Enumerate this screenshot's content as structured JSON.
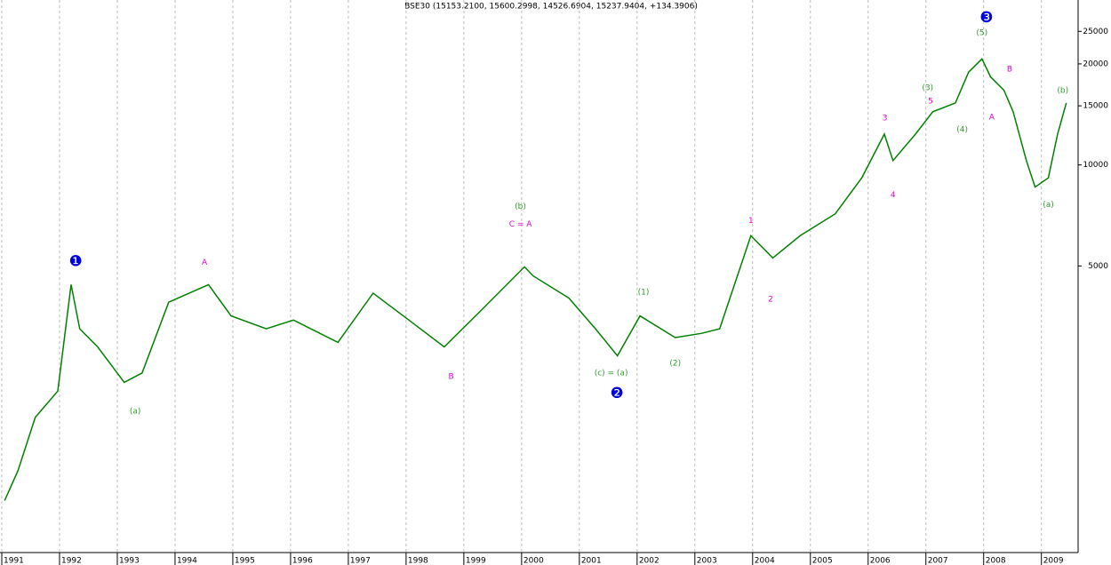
{
  "chart_data": {
    "type": "line",
    "title": "BSE30 (15153.2100, 15600.2998, 14526.6904, 15237.9404, +134.3906)",
    "log": true,
    "xgrid": true,
    "color": "#008000",
    "x": [
      1991.05,
      1991.28,
      1991.58,
      1991.97,
      1992.2,
      1992.35,
      1992.66,
      1993.12,
      1993.43,
      1993.89,
      1994.58,
      1994.97,
      1995.58,
      1996.05,
      1996.82,
      1997.43,
      1998.05,
      1998.66,
      1999.28,
      2000.05,
      2000.2,
      2000.82,
      2001.28,
      2001.66,
      2002.05,
      2002.66,
      2003.12,
      2003.43,
      2003.97,
      2004.35,
      2004.82,
      2005.43,
      2005.89,
      2006.28,
      2006.43,
      2006.82,
      2007.12,
      2007.51,
      2007.74,
      2007.97,
      2008.12,
      2008.35,
      2008.51,
      2008.74,
      2008.89,
      2009.12,
      2009.28,
      2009.43
    ],
    "values": [
      1000,
      1228,
      1770,
      2120,
      4400,
      3250,
      2870,
      2250,
      2400,
      3900,
      4400,
      3550,
      3250,
      3450,
      2960,
      4150,
      3450,
      2870,
      3660,
      4970,
      4670,
      4010,
      3250,
      2700,
      3550,
      3060,
      3150,
      3250,
      6150,
      5280,
      6150,
      7150,
      9150,
      12350,
      10300,
      12350,
      14400,
      15300,
      18900,
      20700,
      18300,
      16700,
      14400,
      10300,
      8590,
      9150,
      12350,
      15300
    ],
    "xlim": [
      1991,
      2009.62
    ],
    "xticks": [
      1991,
      1992,
      1993,
      1994,
      1995,
      1996,
      1997,
      1998,
      1999,
      2000,
      2001,
      2002,
      2003,
      2004,
      2005,
      2006,
      2007,
      2008,
      2009
    ],
    "ylim": [
      700,
      31000
    ],
    "yticks": [
      5000,
      10000,
      15000,
      20000,
      25000
    ],
    "annotations": [
      {
        "text": "❶",
        "x": 1992.28,
        "y": 5150,
        "color": "#0000dd"
      },
      {
        "text": "A",
        "x": 1994.51,
        "y": 5120,
        "color": "#dd00dd"
      },
      {
        "text": "(a)",
        "x": 1993.31,
        "y": 1845,
        "color": "#339933"
      },
      {
        "text": "B",
        "x": 1998.78,
        "y": 2340,
        "color": "#dd00dd"
      },
      {
        "text": "(b)",
        "x": 1999.98,
        "y": 7510,
        "color": "#339933"
      },
      {
        "text": "C = A",
        "x": 1999.98,
        "y": 6650,
        "color": "#dd00dd"
      },
      {
        "text": "(c) = (a)",
        "x": 2001.55,
        "y": 2395,
        "color": "#339933"
      },
      {
        "text": "❷",
        "x": 2001.65,
        "y": 2085,
        "color": "#0000dd"
      },
      {
        "text": "(1)",
        "x": 2002.11,
        "y": 4170,
        "color": "#339933"
      },
      {
        "text": "(2)",
        "x": 2002.66,
        "y": 2560,
        "color": "#339933"
      },
      {
        "text": "1",
        "x": 2003.97,
        "y": 6820,
        "color": "#dd00dd"
      },
      {
        "text": "2",
        "x": 2004.31,
        "y": 3970,
        "color": "#dd00dd"
      },
      {
        "text": "3",
        "x": 2006.29,
        "y": 13800,
        "color": "#dd00dd"
      },
      {
        "text": "4",
        "x": 2006.43,
        "y": 8130,
        "color": "#dd00dd"
      },
      {
        "text": "(3)",
        "x": 2007.03,
        "y": 16970,
        "color": "#339933"
      },
      {
        "text": "5",
        "x": 2007.08,
        "y": 15490,
        "color": "#dd00dd"
      },
      {
        "text": "(4)",
        "x": 2007.63,
        "y": 12750,
        "color": "#339933"
      },
      {
        "text": "❸",
        "x": 2008.05,
        "y": 27430,
        "color": "#0000dd"
      },
      {
        "text": "(5)",
        "x": 2007.97,
        "y": 24740,
        "color": "#339933"
      },
      {
        "text": "B",
        "x": 2008.45,
        "y": 19290,
        "color": "#dd00dd"
      },
      {
        "text": "A",
        "x": 2008.14,
        "y": 13880,
        "color": "#dd00dd"
      },
      {
        "text": "(a)",
        "x": 2009.12,
        "y": 7610,
        "color": "#339933"
      },
      {
        "text": "(b)",
        "x": 2009.37,
        "y": 16660,
        "color": "#339933"
      }
    ]
  }
}
